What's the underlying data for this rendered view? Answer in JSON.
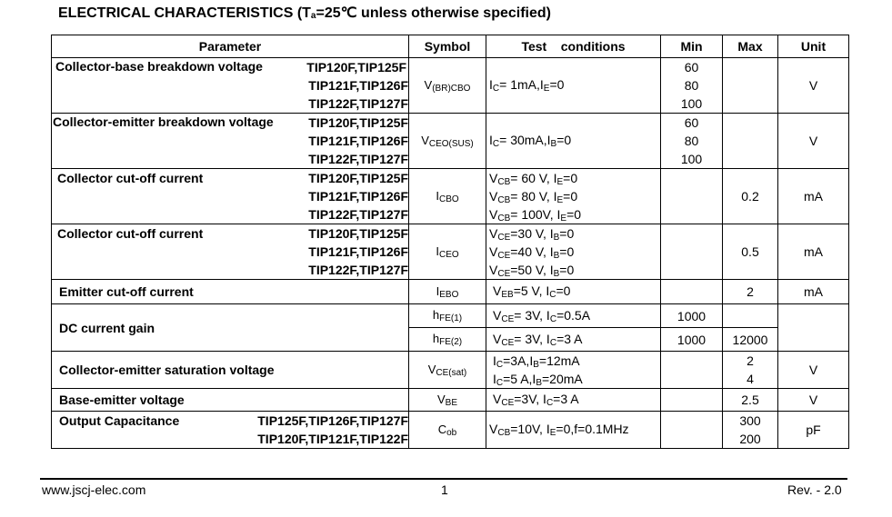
{
  "title": {
    "main": "ELECTRICAL CHARACTERISTICS (T",
    "sub": "a",
    "rest": "=25℃ unless otherwise specified)"
  },
  "headers": {
    "parameter": "Parameter",
    "symbol": "Symbol",
    "conditions": "Test    conditions",
    "min": "Min",
    "max": "Max",
    "unit": "Unit"
  },
  "rows": {
    "r1": {
      "name": "Collector-base breakdown voltage",
      "parts": [
        "TIP120F,TIP125F",
        "TIP121F,TIP126F",
        "TIP122F,TIP127F"
      ],
      "sym": {
        "b": "V",
        "s": "(BR)CBO"
      },
      "cond": {
        "a": "I",
        "as": "C",
        "b": "= 1mA,I",
        "bs": "E",
        "c": "=0"
      },
      "min": [
        "60",
        "80",
        "100"
      ],
      "max": "",
      "unit": "V"
    },
    "r2": {
      "name": "Collector-emitter breakdown voltage",
      "parts": [
        "TIP120F,TIP125F",
        "TIP121F,TIP126F",
        "TIP122F,TIP127F"
      ],
      "sym": {
        "b": "V",
        "s": "CEO(SUS)"
      },
      "cond": {
        "a": "I",
        "as": "C",
        "b": "= 30mA,I",
        "bs": "B",
        "c": "=0"
      },
      "min": [
        "60",
        "80",
        "100"
      ],
      "max": "",
      "unit": "V"
    },
    "r3": {
      "name": "Collector cut-off current",
      "parts": [
        "TIP120F,TIP125F",
        "TIP121F,TIP126F",
        "TIP122F,TIP127F"
      ],
      "sym": {
        "b": "I",
        "s": "CBO"
      },
      "conds": [
        {
          "a": "V",
          "as": "CB",
          "b": "= 60 V, I",
          "bs": "E",
          "c": "=0"
        },
        {
          "a": "V",
          "as": "CB",
          "b": "= 80 V, I",
          "bs": "E",
          "c": "=0"
        },
        {
          "a": "V",
          "as": "CB",
          "b": "= 100V, I",
          "bs": "E",
          "c": "=0"
        }
      ],
      "min": "",
      "max": "0.2",
      "unit": "mA"
    },
    "r4": {
      "name": "Collector cut-off current",
      "parts": [
        "TIP120F,TIP125F",
        "TIP121F,TIP126F",
        "TIP122F,TIP127F"
      ],
      "sym": {
        "b": "I",
        "s": "CEO"
      },
      "conds": [
        {
          "a": "V",
          "as": "CE",
          "b": "=30 V, I",
          "bs": "B",
          "c": "=0"
        },
        {
          "a": "V",
          "as": "CE",
          "b": "=40 V, I",
          "bs": "B",
          "c": "=0"
        },
        {
          "a": "V",
          "as": "CE",
          "b": "=50 V, I",
          "bs": "B",
          "c": "=0"
        }
      ],
      "min": "",
      "max": "0.5",
      "unit": "mA"
    },
    "r5": {
      "name": "Emitter cut-off current",
      "sym": {
        "b": "I",
        "s": "EBO"
      },
      "cond": {
        "a": "V",
        "as": "EB",
        "b": "=5 V, I",
        "bs": "C",
        "c": "=0"
      },
      "min": "",
      "max": "2",
      "unit": "mA"
    },
    "r6": {
      "name": "DC current gain",
      "sub1": {
        "sym": {
          "b": "h",
          "s": "FE(1)"
        },
        "cond": {
          "a": "V",
          "as": "CE",
          "b": "= 3V, I",
          "bs": "C",
          "c": "=0.5A"
        },
        "min": "1000",
        "max": ""
      },
      "sub2": {
        "sym": {
          "b": "h",
          "s": "FE(2)"
        },
        "cond": {
          "a": "V",
          "as": "CE",
          "b": "= 3V, I",
          "bs": "C",
          "c": "=3 A"
        },
        "min": "1000",
        "max": "12000"
      },
      "unit": ""
    },
    "r7": {
      "name": "Collector-emitter saturation voltage",
      "sym": {
        "b": "V",
        "s": "CE(sat)"
      },
      "conds": [
        {
          "a": "I",
          "as": "C",
          "b": "=3A,I",
          "bs": "B",
          "c": "=12mA"
        },
        {
          "a": "I",
          "as": "C",
          "b": "=5 A,I",
          "bs": "B",
          "c": "=20mA"
        }
      ],
      "min": "",
      "max": [
        "2",
        "4"
      ],
      "unit": "V"
    },
    "r8": {
      "name": "Base-emitter voltage",
      "sym": {
        "b": "V",
        "s": "BE"
      },
      "cond": {
        "a": "V",
        "as": "CE",
        "b": "=3V, I",
        "bs": "C",
        "c": "=3 A"
      },
      "min": "",
      "max": "2.5",
      "unit": "V"
    },
    "r9": {
      "name": "Output Capacitance",
      "parts": [
        "TIP125F,TIP126F,TIP127F",
        "TIP120F,TIP121F,TIP122F"
      ],
      "sym": {
        "b": "C",
        "s": "ob"
      },
      "cond": {
        "a": "V",
        "as": "CB",
        "b": "=10V, I",
        "bs": "E",
        "c": "=0,f=0.1MHz"
      },
      "min": "",
      "max": [
        "300",
        "200"
      ],
      "unit": "pF"
    }
  },
  "footer": {
    "url": "www.jscj-elec.com",
    "page": "1",
    "rev": "Rev. - 2.0"
  }
}
